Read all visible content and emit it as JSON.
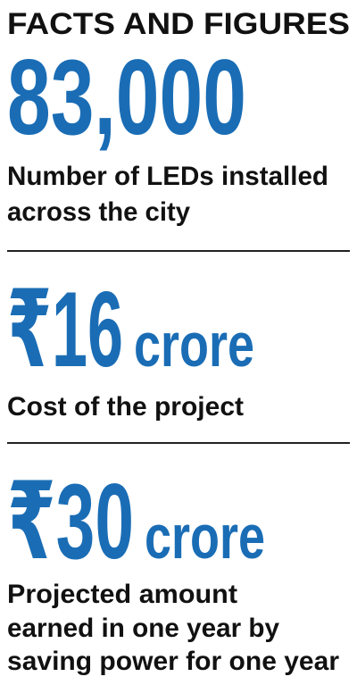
{
  "header": {
    "title": "FACTS AND FIGURES"
  },
  "facts": [
    {
      "figure": "83,000",
      "caption": [
        "Number of LEDs installed",
        "across the city"
      ]
    },
    {
      "figure": "₹16",
      "unit": "crore",
      "caption": [
        "Cost of the project"
      ]
    },
    {
      "figure": "₹30",
      "unit": "crore",
      "caption": [
        "Projected amount",
        "earned in one year by",
        "saving power for one year"
      ]
    }
  ]
}
